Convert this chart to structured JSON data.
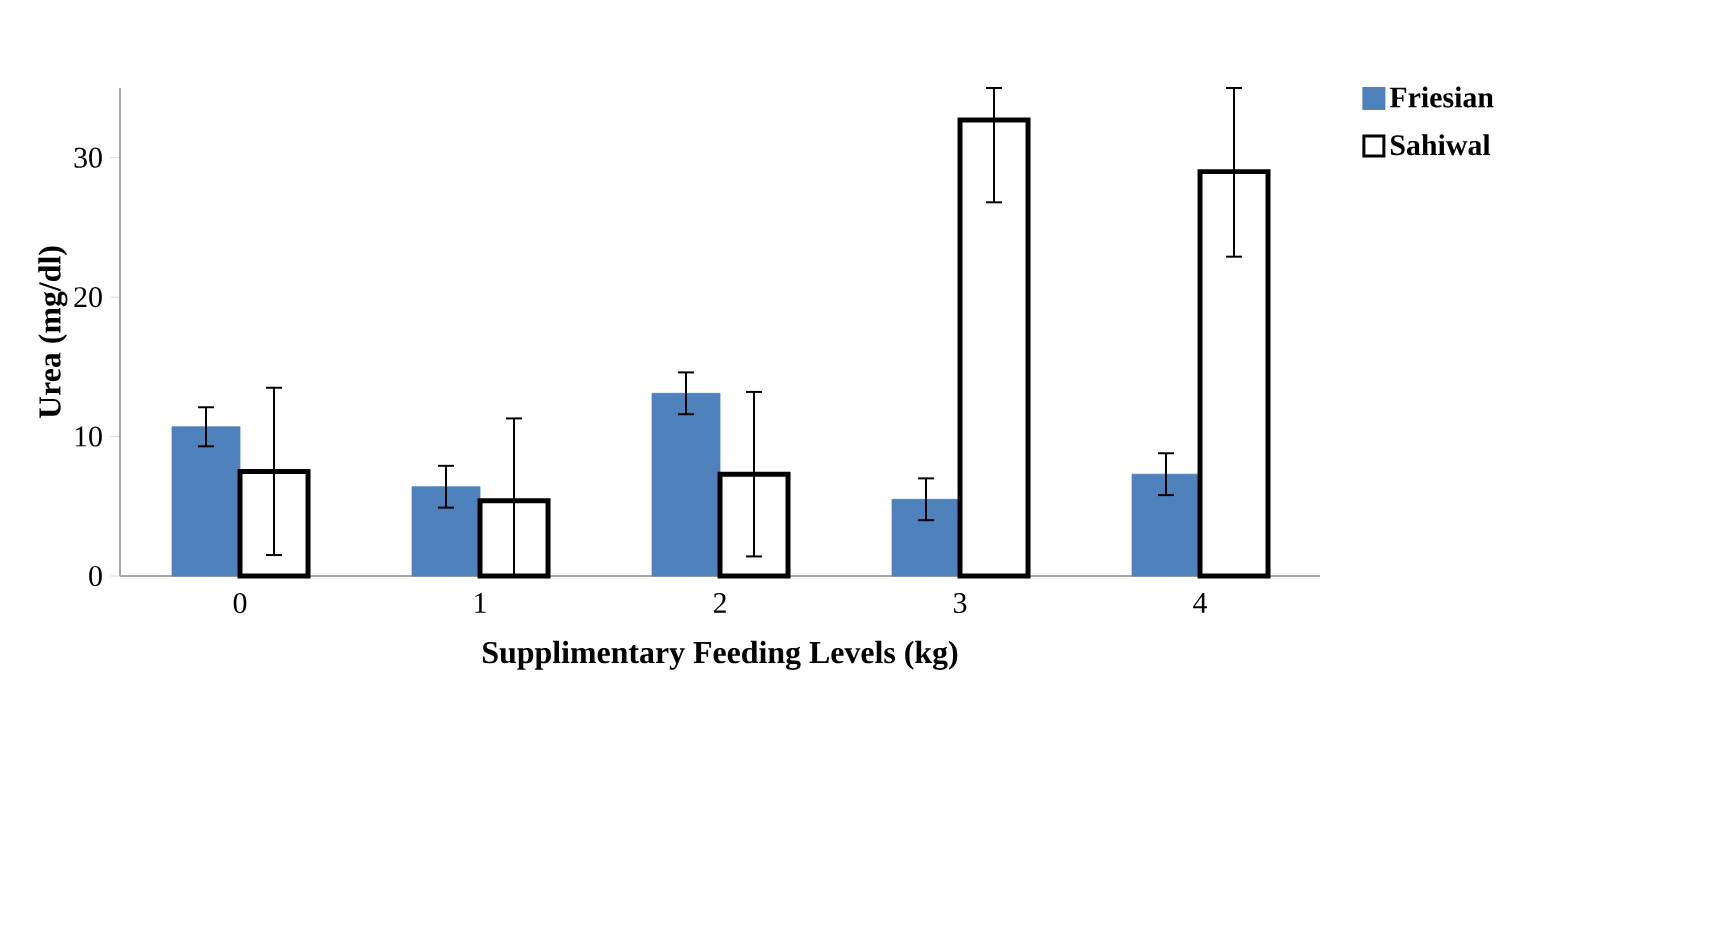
{
  "chart_data": {
    "type": "bar",
    "xlabel": "Supplimentary Feeding Levels (kg)",
    "ylabel": "Urea (mg/dl)",
    "categories": [
      "0",
      "1",
      "2",
      "3",
      "4"
    ],
    "series": [
      {
        "name": "Friesian",
        "color": "#4f81bd",
        "values": [
          10.7,
          6.4,
          13.1,
          5.5,
          7.3
        ],
        "errors": [
          1.4,
          1.5,
          1.5,
          1.5,
          1.5
        ]
      },
      {
        "name": "Sahiwal",
        "color": "#ffffff",
        "values": [
          7.5,
          5.4,
          7.3,
          32.7,
          29.0
        ],
        "errors": [
          6.0,
          [
            0,
            11.3
          ],
          5.9,
          [
            26.8,
            35
          ],
          [
            22.9,
            35
          ]
        ]
      }
    ],
    "ylim": [
      0,
      35
    ],
    "yticks": [
      0,
      10,
      20,
      30
    ],
    "grid": false,
    "legend": "top right"
  }
}
